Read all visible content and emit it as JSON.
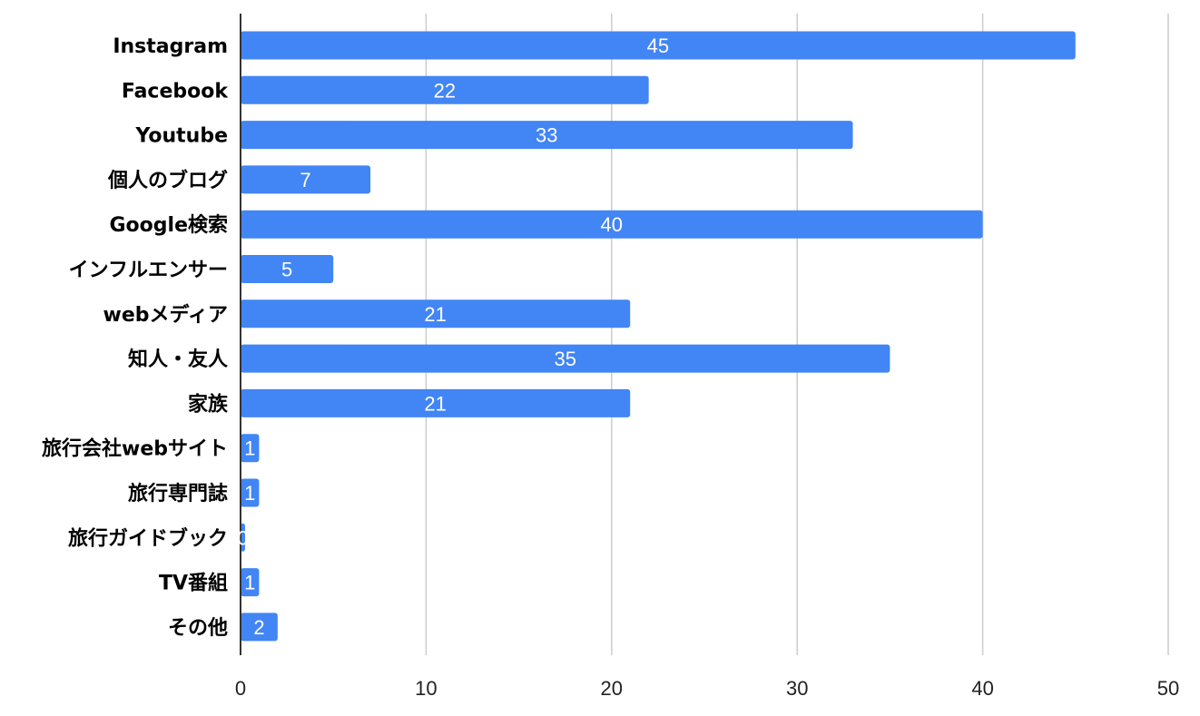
{
  "chart_data": {
    "type": "bar",
    "orientation": "horizontal",
    "title": "",
    "xlabel": "",
    "ylabel": "",
    "categories": [
      "Instagram",
      "Facebook",
      "Youtube",
      "個人のブログ",
      "Google検索",
      "インフルエンサー",
      "webメディア",
      "知人・友人",
      "家族",
      "旅行会社webサイト",
      "旅行専門誌",
      "旅行ガイドブック",
      "TV番組",
      "その他"
    ],
    "values": [
      45,
      22,
      33,
      7,
      40,
      5,
      21,
      35,
      21,
      1,
      1,
      0,
      1,
      2
    ],
    "data_labels": [
      "45",
      "22",
      "33",
      "7",
      "40",
      "5",
      "21",
      "35",
      "21",
      "1",
      "1",
      "0",
      "1",
      "2"
    ],
    "xlim": [
      0,
      50
    ],
    "x_ticks": [
      0,
      10,
      20,
      30,
      40,
      50
    ],
    "x_tick_labels": [
      "0",
      "10",
      "20",
      "30",
      "40",
      "50"
    ],
    "grid": true,
    "legend": "none",
    "bar_color": "#4285f4",
    "data_label_color": "#ffffff"
  }
}
